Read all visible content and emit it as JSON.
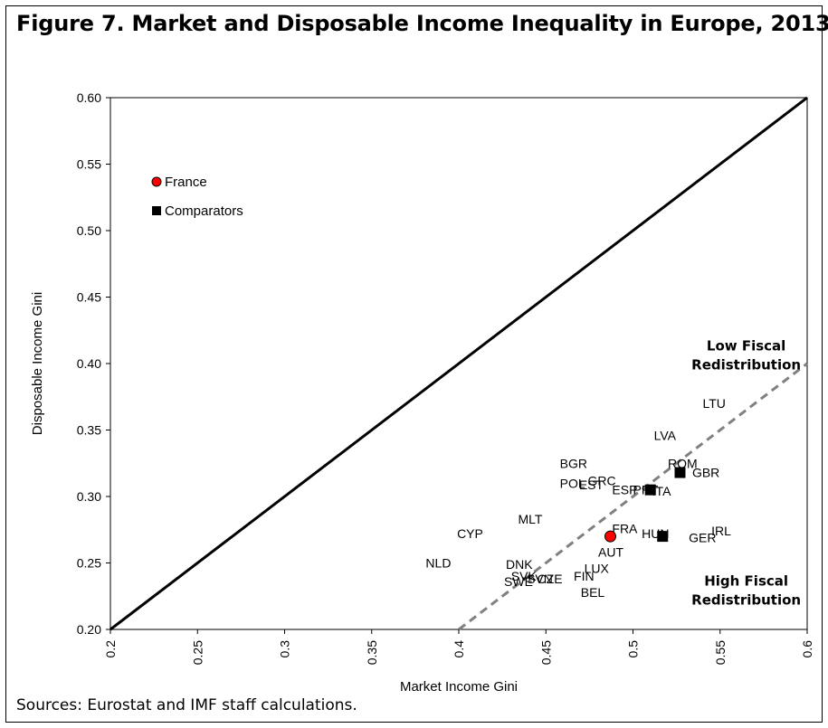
{
  "figure": {
    "title": "Figure 7. Market and Disposable Income Inequality in Europe, 2013",
    "source": "Sources: Eurostat and IMF staff calculations."
  },
  "chart_data": {
    "type": "scatter",
    "xlabel": "Market Income Gini",
    "ylabel": "Disposable Income Gini",
    "xlim": [
      0.2,
      0.6
    ],
    "ylim": [
      0.2,
      0.6
    ],
    "xticks": [
      "0.2",
      "0.25",
      "0.3",
      "0.35",
      "0.4",
      "0.45",
      "0.5",
      "0.55",
      "0.6"
    ],
    "yticks": [
      "0.20",
      "0.25",
      "0.30",
      "0.35",
      "0.40",
      "0.45",
      "0.50",
      "0.55",
      "0.60"
    ],
    "grid": false,
    "legend": {
      "placement": "top-left",
      "items": [
        {
          "label": "France",
          "marker": "circle",
          "color": "#ff0000"
        },
        {
          "label": "Comparators",
          "marker": "square",
          "color": "#000000"
        }
      ]
    },
    "lines": [
      {
        "name": "45-degree line",
        "style": "solid",
        "color": "#000000",
        "points": [
          [
            0.2,
            0.2
          ],
          [
            0.6,
            0.6
          ]
        ]
      },
      {
        "name": "redistribution threshold",
        "style": "dashed",
        "color": "#808080",
        "points": [
          [
            0.4,
            0.2
          ],
          [
            0.6,
            0.4
          ]
        ]
      }
    ],
    "series": [
      {
        "label": "France",
        "marker": "circle",
        "color": "#ff0000",
        "points": [
          {
            "x": 0.487,
            "y": 0.27
          }
        ]
      },
      {
        "label": "Comparators",
        "marker": "square",
        "color": "#000000",
        "points": [
          {
            "x": 0.527,
            "y": 0.318
          },
          {
            "x": 0.517,
            "y": 0.27
          },
          {
            "x": 0.51,
            "y": 0.305
          }
        ]
      }
    ],
    "country_labels": [
      {
        "text": "LTU",
        "x": 0.54,
        "y": 0.37
      },
      {
        "text": "LVA",
        "x": 0.512,
        "y": 0.346
      },
      {
        "text": "BGR",
        "x": 0.458,
        "y": 0.325
      },
      {
        "text": "ROM",
        "x": 0.52,
        "y": 0.325
      },
      {
        "text": "GBR",
        "x": 0.534,
        "y": 0.318
      },
      {
        "text": "GRC",
        "x": 0.474,
        "y": 0.312
      },
      {
        "text": "POL",
        "x": 0.458,
        "y": 0.31
      },
      {
        "text": "EST",
        "x": 0.469,
        "y": 0.309
      },
      {
        "text": "ESP",
        "x": 0.488,
        "y": 0.305
      },
      {
        "text": "PRT",
        "x": 0.5,
        "y": 0.305
      },
      {
        "text": "ITA",
        "x": 0.511,
        "y": 0.304
      },
      {
        "text": "MLT",
        "x": 0.434,
        "y": 0.283
      },
      {
        "text": "CYP",
        "x": 0.399,
        "y": 0.272
      },
      {
        "text": "FRA",
        "x": 0.488,
        "y": 0.276
      },
      {
        "text": "HUN",
        "x": 0.505,
        "y": 0.272
      },
      {
        "text": "GER",
        "x": 0.532,
        "y": 0.269
      },
      {
        "text": "IRL",
        "x": 0.545,
        "y": 0.274
      },
      {
        "text": "AUT",
        "x": 0.48,
        "y": 0.258
      },
      {
        "text": "NLD",
        "x": 0.381,
        "y": 0.25
      },
      {
        "text": "DNK",
        "x": 0.427,
        "y": 0.249
      },
      {
        "text": "LUX",
        "x": 0.472,
        "y": 0.246
      },
      {
        "text": "SVK",
        "x": 0.43,
        "y": 0.24
      },
      {
        "text": "SVN",
        "x": 0.439,
        "y": 0.238
      },
      {
        "text": "CZE",
        "x": 0.445,
        "y": 0.238
      },
      {
        "text": "FIN",
        "x": 0.466,
        "y": 0.24
      },
      {
        "text": "SWE",
        "x": 0.426,
        "y": 0.236
      },
      {
        "text": "BEL",
        "x": 0.47,
        "y": 0.228
      }
    ],
    "annotations": [
      {
        "lines": [
          "Low Fiscal",
          "Redistribution"
        ],
        "x": 0.565,
        "y": 0.41
      },
      {
        "lines": [
          "High Fiscal",
          "Redistribution"
        ],
        "x": 0.565,
        "y": 0.233
      }
    ]
  }
}
